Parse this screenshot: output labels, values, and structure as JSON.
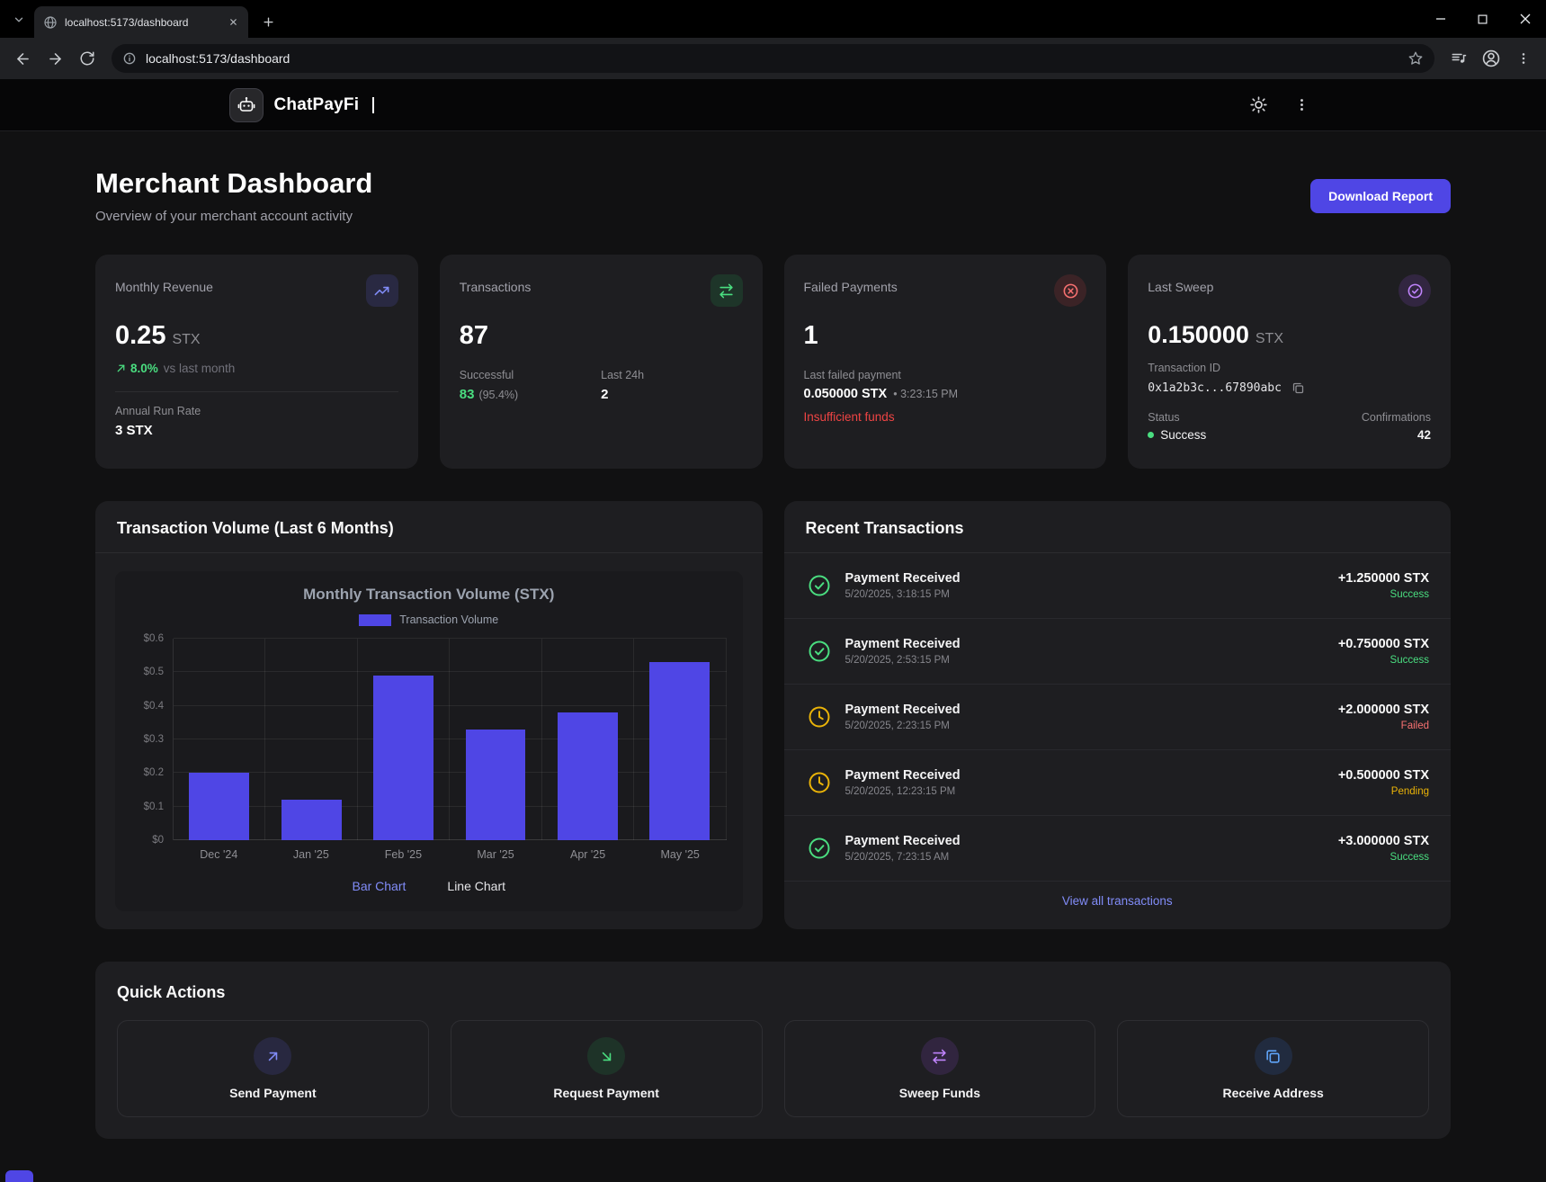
{
  "browser": {
    "tab_title": "localhost:5173/dashboard",
    "url": "localhost:5173/dashboard"
  },
  "header": {
    "brand": "ChatPayFi"
  },
  "page": {
    "title": "Merchant Dashboard",
    "subtitle": "Overview of your merchant account activity",
    "download_button": "Download Report"
  },
  "stats": {
    "monthly_revenue": {
      "label": "Monthly Revenue",
      "value": "0.25",
      "unit": "STX",
      "change": "8.0%",
      "change_note": "vs last month",
      "annual_label": "Annual Run Rate",
      "annual_value": "3 STX"
    },
    "transactions": {
      "label": "Transactions",
      "value": "87",
      "successful_label": "Successful",
      "successful_value": "83",
      "successful_pct": "(95.4%)",
      "last24_label": "Last 24h",
      "last24_value": "2"
    },
    "failed_payments": {
      "label": "Failed Payments",
      "value": "1",
      "note": "Last failed payment",
      "amount": "0.050000 STX",
      "time": "• 3:23:15 PM",
      "reason": "Insufficient funds"
    },
    "last_sweep": {
      "label": "Last Sweep",
      "value": "0.150000",
      "unit": "STX",
      "txid_label": "Transaction ID",
      "txid": "0x1a2b3c...67890abc",
      "status_label": "Status",
      "status_value": "Success",
      "confirmations_label": "Confirmations",
      "confirmations_value": "42"
    }
  },
  "chart_panel": {
    "title": "Transaction Volume (Last 6 Months)",
    "tabs": [
      {
        "label": "Bar Chart",
        "active": true
      },
      {
        "label": "Line Chart",
        "active": false
      }
    ]
  },
  "chart_data": {
    "type": "bar",
    "title": "Monthly Transaction Volume (STX)",
    "legend": [
      "Transaction Volume"
    ],
    "categories": [
      "Dec '24",
      "Jan '25",
      "Feb '25",
      "Mar '25",
      "Apr '25",
      "May '25"
    ],
    "values": [
      0.2,
      0.12,
      0.49,
      0.33,
      0.38,
      0.53
    ],
    "ylim": [
      0,
      0.6
    ],
    "yticks": [
      "$0",
      "$0.1",
      "$0.2",
      "$0.3",
      "$0.4",
      "$0.5",
      "$0.6"
    ],
    "bar_color": "#4f46e5",
    "grid": true,
    "legend_position": "top"
  },
  "transactions_panel": {
    "title": "Recent Transactions",
    "items": [
      {
        "title": "Payment Received",
        "date": "5/20/2025, 3:18:15 PM",
        "amount": "+1.250000 STX",
        "status": "Success"
      },
      {
        "title": "Payment Received",
        "date": "5/20/2025, 2:53:15 PM",
        "amount": "+0.750000 STX",
        "status": "Success"
      },
      {
        "title": "Payment Received",
        "date": "5/20/2025, 2:23:15 PM",
        "amount": "+2.000000 STX",
        "status": "Failed"
      },
      {
        "title": "Payment Received",
        "date": "5/20/2025, 12:23:15 PM",
        "amount": "+0.500000 STX",
        "status": "Pending"
      },
      {
        "title": "Payment Received",
        "date": "5/20/2025, 7:23:15 AM",
        "amount": "+3.000000 STX",
        "status": "Success"
      }
    ],
    "view_all": "View all transactions"
  },
  "quick_actions": {
    "title": "Quick Actions",
    "items": [
      {
        "label": "Send Payment",
        "icon": "arrow-up-right"
      },
      {
        "label": "Request Payment",
        "icon": "arrow-down-right"
      },
      {
        "label": "Sweep Funds",
        "icon": "swap-arrows"
      },
      {
        "label": "Receive Address",
        "icon": "copy"
      }
    ]
  },
  "colors": {
    "accent_indigo": "#4f46e5",
    "link_indigo": "#818cf8",
    "success_green": "#4ade80",
    "error_red": "#ef4444",
    "warning_yellow": "#eab308",
    "purple": "#c084fc",
    "blue": "#60a5fa"
  }
}
